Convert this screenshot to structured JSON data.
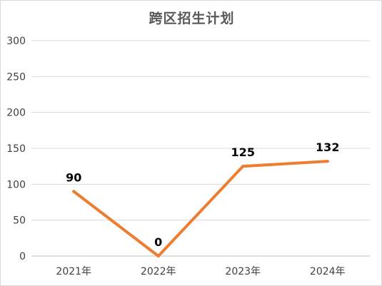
{
  "chart_data": {
    "type": "line",
    "title": "跨区招生计划",
    "xlabel": "",
    "ylabel": "",
    "categories": [
      "2021年",
      "2022年",
      "2023年",
      "2024年"
    ],
    "series": [
      {
        "values": [
          90,
          0,
          125,
          132
        ],
        "color": "#ED7D31"
      }
    ],
    "ylim": [
      0,
      300
    ],
    "yticks": [
      "0",
      "50",
      "100",
      "150",
      "200",
      "250",
      "300"
    ],
    "data_labels": [
      "90",
      "0",
      "125",
      "132"
    ],
    "grid": true,
    "legend": "none"
  }
}
